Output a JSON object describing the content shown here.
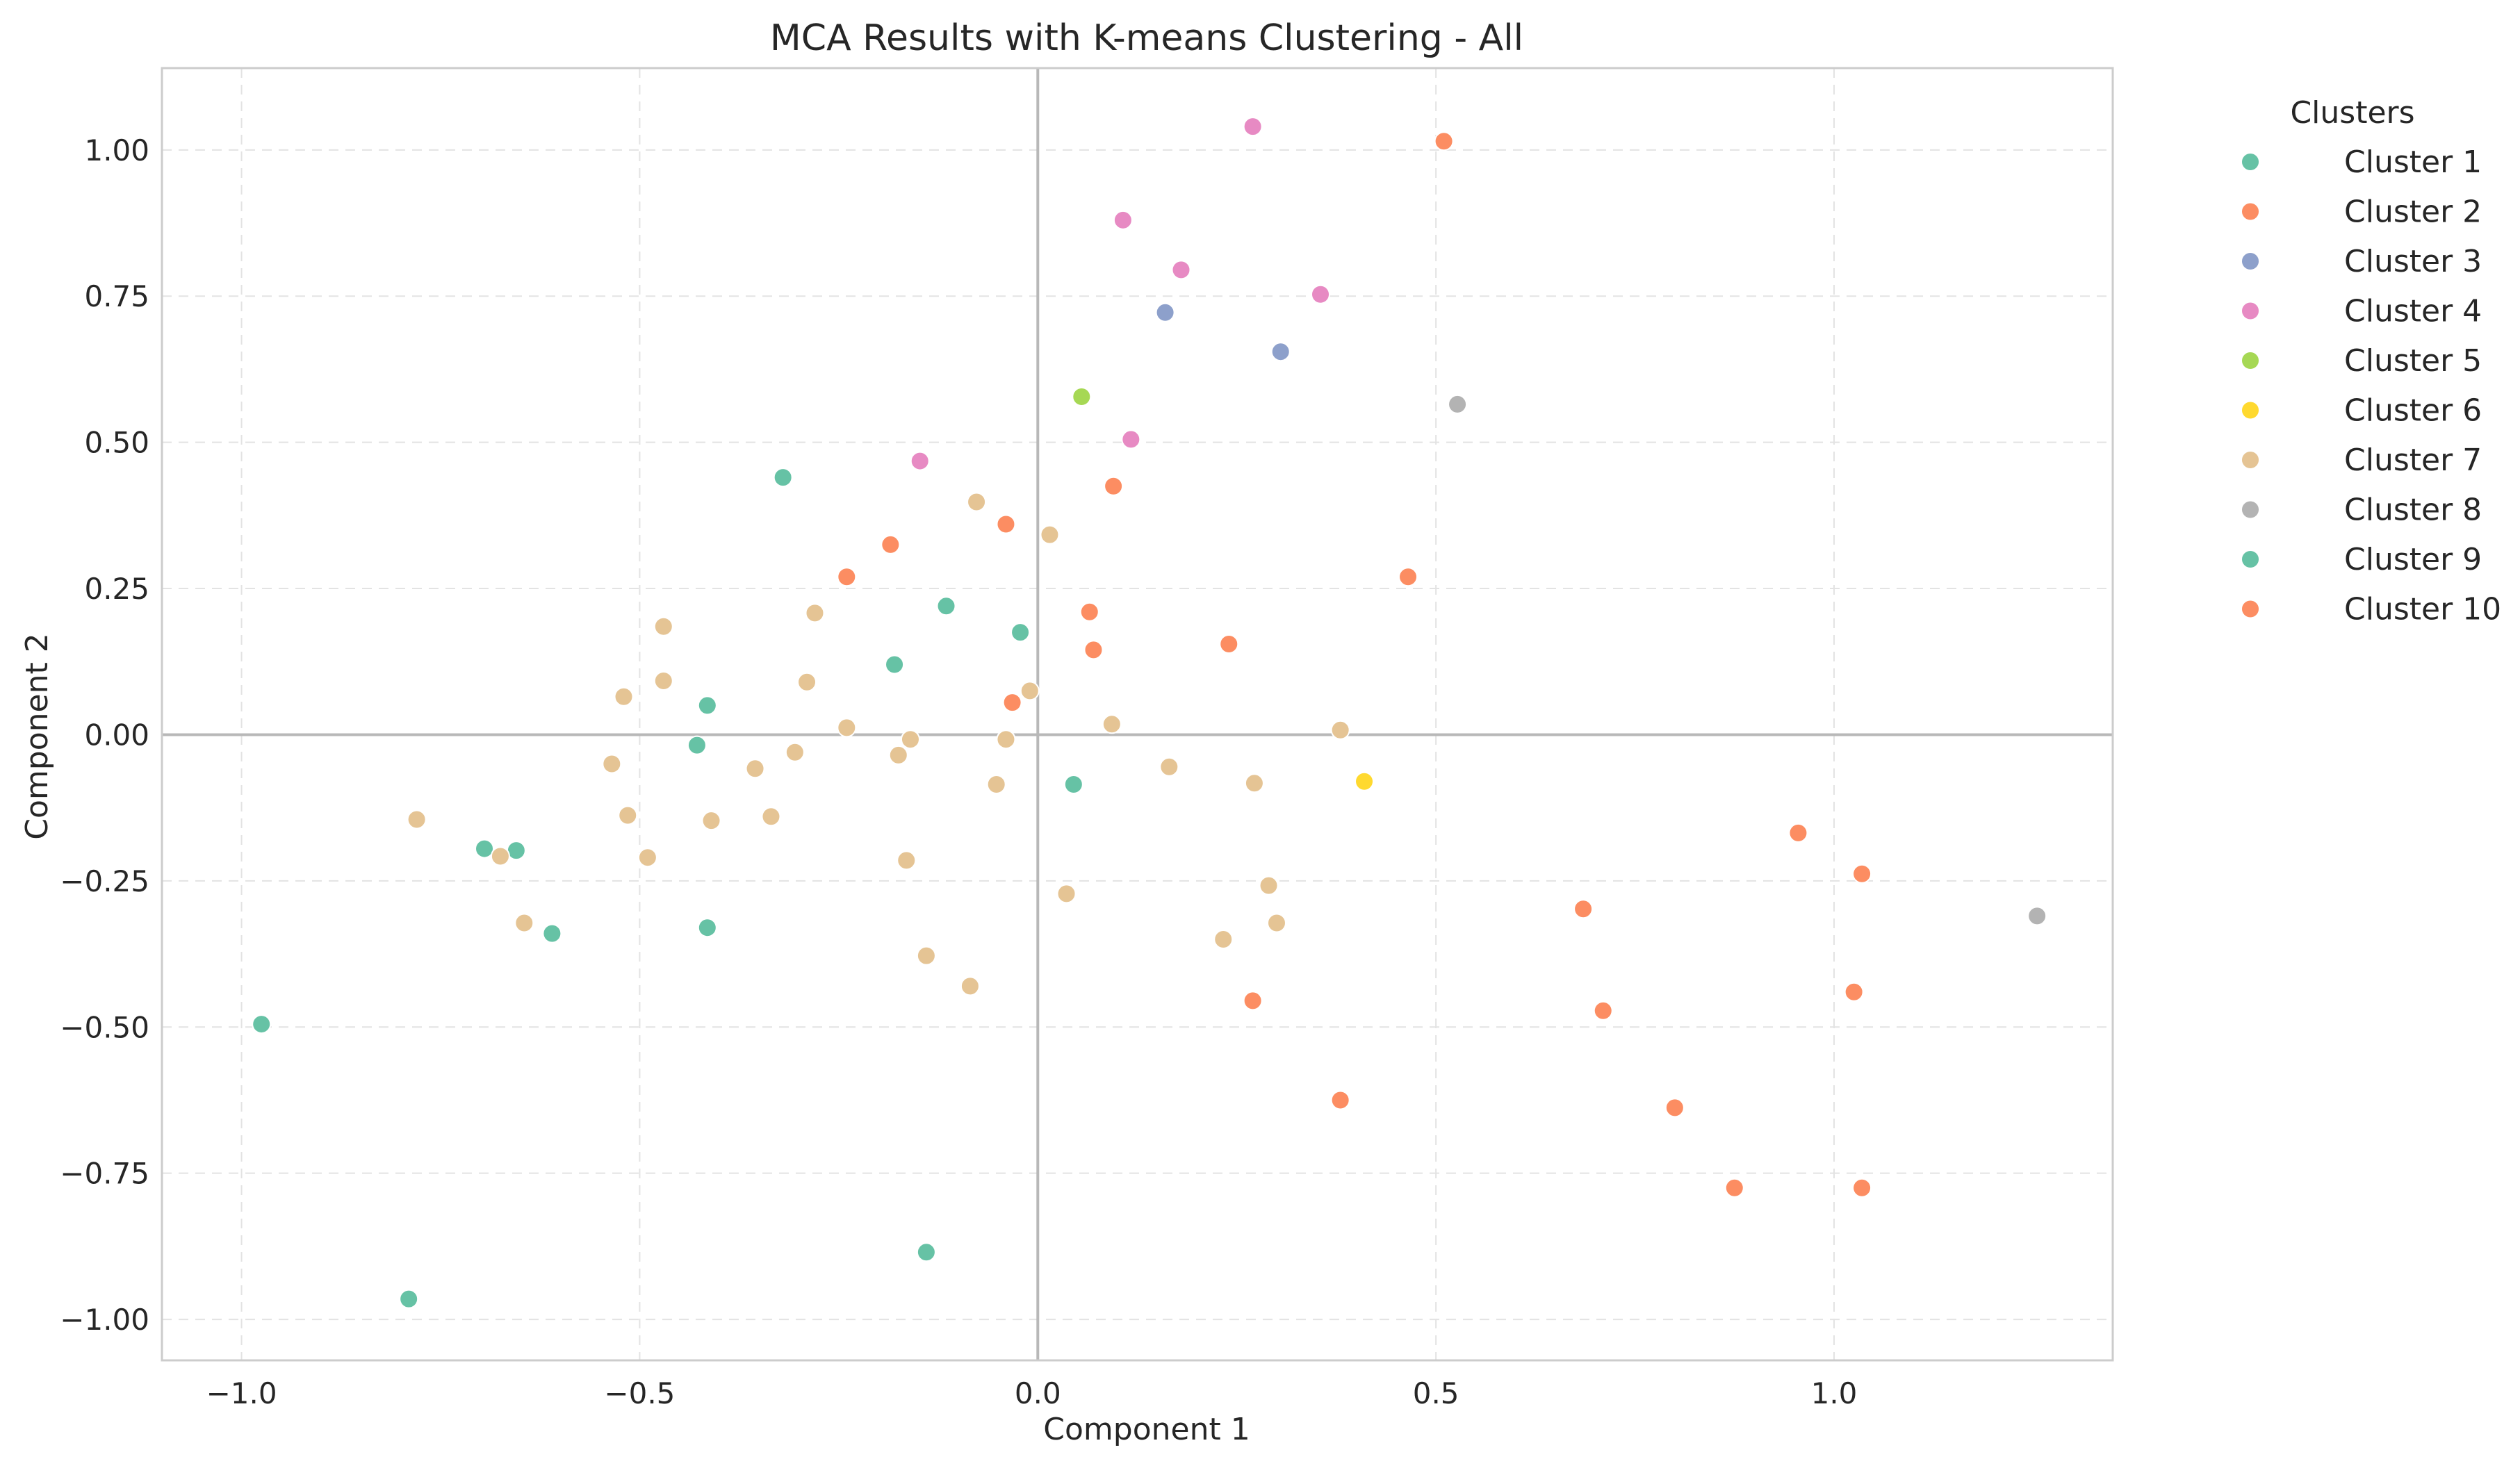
{
  "chart_data": {
    "type": "scatter",
    "title": "MCA Results with K-means Clustering - All",
    "xlabel": "Component 1",
    "ylabel": "Component 2",
    "xlim": [
      -1.1,
      1.35
    ],
    "ylim": [
      -1.07,
      1.14
    ],
    "xticks": [
      -1.0,
      -0.5,
      0.0,
      0.5,
      1.0
    ],
    "xtick_labels": [
      "−1.0",
      "−0.5",
      "0.0",
      "0.5",
      "1.0"
    ],
    "yticks": [
      -1.0,
      -0.75,
      -0.5,
      -0.25,
      0.0,
      0.25,
      0.5,
      0.75,
      1.0
    ],
    "ytick_labels": [
      "−1.00",
      "−0.75",
      "−0.50",
      "−0.25",
      "0.00",
      "0.25",
      "0.50",
      "0.75",
      "1.00"
    ],
    "grid": true,
    "zero_lines": true,
    "legend": {
      "title": "Clusters",
      "placement": "outside-right-top"
    },
    "series": [
      {
        "name": "Cluster 1",
        "color": "#66c2a5",
        "points": [
          [
            -0.32,
            0.44
          ],
          [
            -0.115,
            0.22
          ],
          [
            -0.18,
            0.12
          ],
          [
            -0.022,
            0.175
          ],
          [
            -0.415,
            0.05
          ],
          [
            -0.428,
            -0.018
          ],
          [
            0.045,
            -0.085
          ],
          [
            -0.695,
            -0.195
          ],
          [
            -0.655,
            -0.198
          ],
          [
            -0.61,
            -0.34
          ],
          [
            -0.415,
            -0.33
          ],
          [
            -0.975,
            -0.495
          ],
          [
            -0.79,
            -0.965
          ],
          [
            -0.14,
            -0.885
          ]
        ]
      },
      {
        "name": "Cluster 2",
        "color": "#fc8d62",
        "points": [
          [
            0.51,
            1.015
          ],
          [
            0.095,
            0.425
          ],
          [
            -0.04,
            0.36
          ],
          [
            -0.185,
            0.325
          ],
          [
            -0.24,
            0.27
          ],
          [
            0.465,
            0.27
          ],
          [
            0.065,
            0.21
          ],
          [
            0.07,
            0.145
          ],
          [
            0.24,
            0.155
          ],
          [
            -0.032,
            0.055
          ],
          [
            0.955,
            -0.168
          ],
          [
            1.035,
            -0.238
          ],
          [
            0.685,
            -0.298
          ],
          [
            0.27,
            -0.455
          ],
          [
            0.71,
            -0.472
          ],
          [
            1.025,
            -0.44
          ],
          [
            0.38,
            -0.625
          ],
          [
            0.8,
            -0.638
          ],
          [
            0.875,
            -0.775
          ],
          [
            1.035,
            -0.775
          ]
        ]
      },
      {
        "name": "Cluster 3",
        "color": "#8da0cb",
        "points": [
          [
            0.16,
            0.722
          ],
          [
            0.305,
            0.655
          ]
        ]
      },
      {
        "name": "Cluster 4",
        "color": "#e78ac3",
        "points": [
          [
            0.27,
            1.04
          ],
          [
            0.107,
            0.88
          ],
          [
            0.18,
            0.795
          ],
          [
            0.355,
            0.753
          ],
          [
            0.117,
            0.505
          ],
          [
            -0.148,
            0.468
          ]
        ]
      },
      {
        "name": "Cluster 5",
        "color": "#a6d854",
        "points": [
          [
            0.055,
            0.578
          ]
        ]
      },
      {
        "name": "Cluster 6",
        "color": "#ffd92f",
        "points": [
          [
            0.41,
            -0.08
          ]
        ]
      },
      {
        "name": "Cluster 7",
        "color": "#e5c494",
        "points": [
          [
            -0.077,
            0.398
          ],
          [
            0.015,
            0.342
          ],
          [
            -0.47,
            0.185
          ],
          [
            -0.28,
            0.208
          ],
          [
            -0.52,
            0.065
          ],
          [
            -0.47,
            0.092
          ],
          [
            -0.29,
            0.09
          ],
          [
            -0.01,
            0.075
          ],
          [
            -0.24,
            0.012
          ],
          [
            -0.16,
            -0.008
          ],
          [
            -0.04,
            -0.008
          ],
          [
            0.093,
            0.018
          ],
          [
            0.38,
            0.008
          ],
          [
            -0.535,
            -0.05
          ],
          [
            -0.355,
            -0.058
          ],
          [
            -0.305,
            -0.03
          ],
          [
            -0.175,
            -0.035
          ],
          [
            -0.052,
            -0.085
          ],
          [
            0.165,
            -0.055
          ],
          [
            0.272,
            -0.083
          ],
          [
            -0.78,
            -0.145
          ],
          [
            -0.515,
            -0.138
          ],
          [
            -0.41,
            -0.147
          ],
          [
            -0.335,
            -0.14
          ],
          [
            -0.49,
            -0.21
          ],
          [
            -0.675,
            -0.208
          ],
          [
            -0.165,
            -0.215
          ],
          [
            0.036,
            -0.272
          ],
          [
            0.29,
            -0.258
          ],
          [
            -0.645,
            -0.322
          ],
          [
            0.3,
            -0.322
          ],
          [
            0.233,
            -0.35
          ],
          [
            -0.14,
            -0.378
          ],
          [
            -0.085,
            -0.43
          ]
        ]
      },
      {
        "name": "Cluster 8",
        "color": "#b3b3b3",
        "points": [
          [
            0.527,
            0.565
          ],
          [
            1.255,
            -0.31
          ]
        ]
      },
      {
        "name": "Cluster 9",
        "color": "#66c2a5",
        "points": []
      },
      {
        "name": "Cluster 10",
        "color": "#fc8d62",
        "points": []
      }
    ]
  }
}
